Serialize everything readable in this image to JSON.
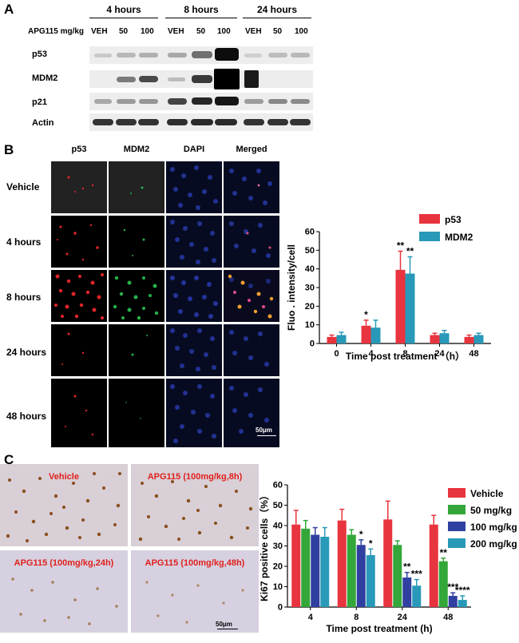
{
  "panelA": {
    "letter": "A",
    "timepoints": [
      "4 hours",
      "8 hours",
      "24 hours"
    ],
    "dose_label": "APG115 mg/kg",
    "doses": [
      "VEH",
      "50",
      "100",
      "VEH",
      "50",
      "100",
      "VEH",
      "50",
      "100"
    ],
    "rows": [
      "p53",
      "MDM2",
      "p21",
      "Actin"
    ]
  },
  "panelB": {
    "letter": "B",
    "columns": [
      "p53",
      "MDM2",
      "DAPI",
      "Merged"
    ],
    "rows": [
      "Vehicle",
      "4 hours",
      "8 hours",
      "24 hours",
      "48 hours"
    ],
    "scalebar": "50μm"
  },
  "panelC": {
    "letter": "C",
    "images": [
      "Vehicle",
      "APG115 (100mg/kg,8h)",
      "APG115 (100mg/kg,24h)",
      "APG115 (100mg/kg,48h)"
    ],
    "scalebar": "50μm"
  },
  "chart_data": [
    {
      "type": "bar",
      "categories": [
        "0",
        "4",
        "8",
        "24",
        "48"
      ],
      "series": [
        {
          "name": "p53",
          "values": [
            3.5,
            9.5,
            39.5,
            4.5,
            3.5
          ],
          "errors": [
            1,
            3,
            10,
            1,
            1
          ],
          "color": "#e8343e"
        },
        {
          "name": "MDM2",
          "values": [
            4.5,
            8.5,
            37.5,
            5.5,
            4.5
          ],
          "errors": [
            1.5,
            4,
            9,
            1.5,
            1
          ],
          "color": "#2899b8"
        }
      ],
      "annotations": [
        {
          "category": "4",
          "series": "p53",
          "text": "*"
        },
        {
          "category": "8",
          "series": "p53",
          "text": "**"
        },
        {
          "category": "8",
          "series": "MDM2",
          "text": "**"
        }
      ],
      "ylabel": "Fluo . intensity/cell",
      "xlabel": "Time  post treatment  （h）",
      "ylim": [
        0,
        60
      ],
      "yticks": [
        "0",
        "10",
        "20",
        "30",
        "40",
        "50",
        "60"
      ],
      "legend": "top-right"
    },
    {
      "type": "bar",
      "categories": [
        "4",
        "8",
        "24",
        "48"
      ],
      "series": [
        {
          "name": "Vehicle",
          "values": [
            40.5,
            42.5,
            43,
            40.5
          ],
          "errors": [
            7,
            5.5,
            9,
            4.5
          ],
          "color": "#e8343e"
        },
        {
          "name": "50 mg/kg",
          "values": [
            38.5,
            35.5,
            30.5,
            22.5
          ],
          "errors": [
            4,
            2.5,
            2,
            1.5
          ],
          "color": "#33a73a"
        },
        {
          "name": "100 mg/kg",
          "values": [
            35.5,
            30.5,
            14.5,
            5.5
          ],
          "errors": [
            3.5,
            2.5,
            2.5,
            1.5
          ],
          "color": "#3040a0"
        },
        {
          "name": "200 mg/kg",
          "values": [
            34.5,
            25.5,
            10.5,
            3.5
          ],
          "errors": [
            4.5,
            3,
            3,
            2
          ],
          "color": "#2899b8"
        }
      ],
      "annotations": [
        {
          "category": "8",
          "series": "100 mg/kg",
          "text": "*"
        },
        {
          "category": "8",
          "series": "200 mg/kg",
          "text": "*"
        },
        {
          "category": "24",
          "series": "100 mg/kg",
          "text": "**"
        },
        {
          "category": "24",
          "series": "200 mg/kg",
          "text": "***"
        },
        {
          "category": "48",
          "series": "50 mg/kg",
          "text": "**"
        },
        {
          "category": "48",
          "series": "100 mg/kg",
          "text": "***"
        },
        {
          "category": "48",
          "series": "200 mg/kg",
          "text": "****"
        }
      ],
      "ylabel": "Ki67 positive cells（%）",
      "xlabel": "Time post treatment (h)",
      "ylim": [
        0,
        60
      ],
      "yticks": [
        "0",
        "10",
        "20",
        "30",
        "40",
        "50",
        "60"
      ],
      "legend": "top-right"
    }
  ]
}
